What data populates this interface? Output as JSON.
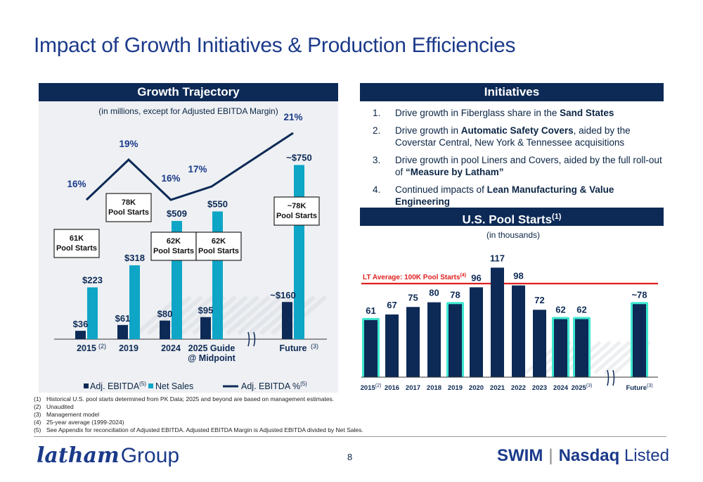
{
  "page": {
    "title": "Impact of Growth Initiatives & Production Efficiencies",
    "page_number": "8",
    "logo_script": "latham",
    "logo_group": "Group",
    "swim_label": "SWIM",
    "nasdaq_bold": "Nasdaq",
    "nasdaq_rest": "Listed"
  },
  "growth": {
    "header": "Growth Trajectory",
    "subtitle": "(in millions, except for Adjusted EBITDA Margin)",
    "legend": {
      "ebitda": "Adj. EBITDA",
      "ebitda_sup": "(5)",
      "net_sales": "Net Sales",
      "margin": "Adj. EBITDA %",
      "margin_sup": "(5)"
    },
    "callouts": [
      "61K\nPool Starts",
      "78K\nPool Starts",
      "62K\nPool Starts",
      "62K\nPool Starts",
      "~78K\nPool Starts"
    ]
  },
  "initiatives": {
    "header": "Initiatives",
    "items": [
      {
        "num": "1.",
        "pre": "Drive growth in Fiberglass share in the ",
        "bold": "Sand States",
        "post": ""
      },
      {
        "num": "2.",
        "pre": "Drive growth in ",
        "bold": "Automatic Safety Covers",
        "post": ", aided by the Coverstar Central, New York & Tennessee acquisitions"
      },
      {
        "num": "3.",
        "pre": "Drive growth in pool Liners and Covers, aided by the full roll-out of ",
        "bold": "“Measure by Latham”",
        "post": ""
      },
      {
        "num": "4.",
        "pre": "Continued impacts of ",
        "bold": "Lean Manufacturing & Value Engineering",
        "post": ""
      }
    ]
  },
  "pool_starts": {
    "header": "U.S. Pool Starts",
    "header_sup": "(1)",
    "subtitle": "(in thousands)",
    "lt_label": "LT Average: 100K Pool Starts",
    "lt_sup": "(4)"
  },
  "footnotes": [
    {
      "num": "(1)",
      "text": "Historical U.S. pool starts determined from PK Data; 2025 and beyond are based on management estimates."
    },
    {
      "num": "(2)",
      "text": "Unaudited"
    },
    {
      "num": "(3)",
      "text": "Management model"
    },
    {
      "num": "(4)",
      "text": "25-year average (1999-2024)"
    },
    {
      "num": "(5)",
      "text": "See Appendix for reconciliation of Adjusted EBITDA. Adjusted EBITDA Margin is Adjusted EBITDA divided by Net Sales."
    }
  ],
  "chart_data": [
    {
      "type": "bar",
      "title": "Growth Trajectory",
      "subtitle": "(in millions, except for Adjusted EBITDA Margin)",
      "categories": [
        "2015",
        "2019",
        "2024",
        "2025 Guide\n@ Midpoint",
        "Future"
      ],
      "category_sups": [
        "(2)",
        "",
        "",
        "",
        "(3)"
      ],
      "series": [
        {
          "name": "Adj. EBITDA",
          "values": [
            36,
            61,
            80,
            95,
            160
          ],
          "labels": [
            "$36",
            "$61",
            "$80",
            "$95",
            "~$160"
          ],
          "color": "#0d2a56"
        },
        {
          "name": "Net Sales",
          "values": [
            223,
            318,
            509,
            550,
            750
          ],
          "labels": [
            "$223",
            "$318",
            "$509",
            "$550",
            "~$750"
          ],
          "color": "#0ea5c6"
        },
        {
          "name": "Adj. EBITDA %",
          "type": "line",
          "x": [
            "2015",
            "2019",
            "2024",
            "2025 Guide",
            "Future"
          ],
          "values": [
            16,
            19,
            16,
            17,
            21
          ],
          "labels": [
            "16%",
            "19%",
            "16%",
            "17%",
            "21%"
          ],
          "color": "#0d2a56"
        }
      ],
      "axis_break": "between 2025 Guide and Future",
      "legend": "bottom"
    },
    {
      "type": "bar",
      "title": "U.S. Pool Starts",
      "subtitle": "(in thousands)",
      "categories": [
        "2015",
        "2016",
        "2017",
        "2018",
        "2019",
        "2020",
        "2021",
        "2022",
        "2023",
        "2024",
        "2025",
        "Future"
      ],
      "category_sups": [
        "(2)",
        "",
        "",
        "",
        "",
        "",
        "",
        "",
        "",
        "",
        "(3)",
        "(3)"
      ],
      "values": [
        61,
        67,
        75,
        80,
        78,
        96,
        117,
        98,
        72,
        62,
        62,
        78
      ],
      "labels": [
        "61",
        "67",
        "75",
        "80",
        "78",
        "96",
        "117",
        "98",
        "72",
        "62",
        "62",
        "~78"
      ],
      "highlighted": [
        "2015",
        "2019",
        "2024",
        "2025",
        "Future"
      ],
      "reference_line": {
        "label": "LT Average: 100K Pool Starts",
        "value": 100,
        "color": "#e02020"
      },
      "bar_color": "#0d2a56",
      "highlight_color": "#3de8d0",
      "axis_break": "between 2025 and Future"
    }
  ]
}
